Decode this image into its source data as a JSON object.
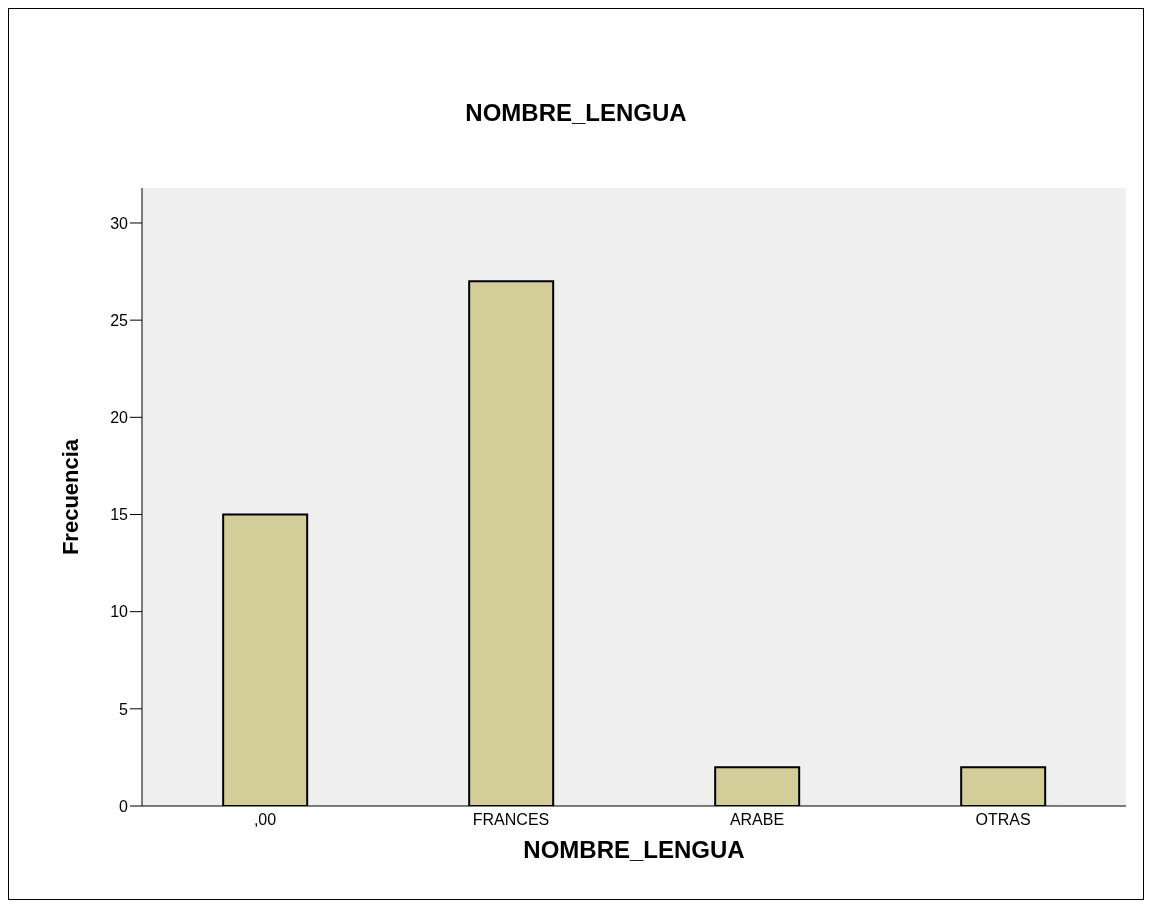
{
  "chart_data": {
    "type": "bar",
    "title": "NOMBRE_LENGUA",
    "xlabel": "NOMBRE_LENGUA",
    "ylabel": "Frecuencia",
    "categories": [
      ",00",
      "FRANCES",
      "ARABE",
      "OTRAS"
    ],
    "values": [
      15,
      27,
      2,
      2
    ],
    "color": "#d3ce99",
    "ylim": [
      0,
      31.8
    ],
    "yticks": [
      0,
      5,
      10,
      15,
      20,
      25,
      30
    ],
    "grid": false,
    "legend": false
  }
}
